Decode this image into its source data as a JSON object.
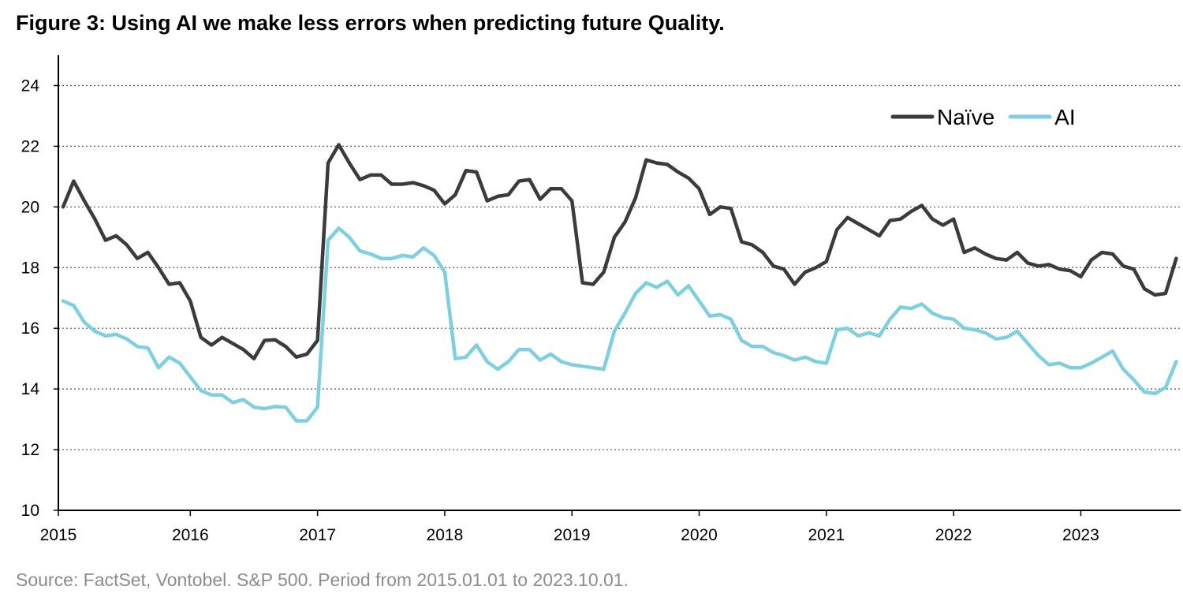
{
  "title": "Figure 3: Using AI we make less errors when predicting future Quality.",
  "source": "Source: FactSet, Vontobel. S&P 500. Period from 2015.01.01 to 2023.10.01.",
  "chart_data": {
    "type": "line",
    "title": "Figure 3: Using AI we make less errors when predicting future Quality.",
    "xlabel": "",
    "ylabel": "",
    "ylim": [
      10,
      25
    ],
    "yticks": [
      10,
      12,
      14,
      16,
      18,
      20,
      22,
      24
    ],
    "xlim": [
      "2015-01",
      "2023-11"
    ],
    "xticks": [
      "2015",
      "2016",
      "2017",
      "2018",
      "2019",
      "2020",
      "2021",
      "2022",
      "2023"
    ],
    "grid": "horizontal dotted",
    "legend_position": "top-right",
    "x_start": "2015-01",
    "x_frequency": "monthly",
    "series": [
      {
        "name": "Naïve",
        "color": "#3b3b3b",
        "values": [
          20.0,
          20.85,
          20.2,
          19.6,
          18.9,
          19.05,
          18.75,
          18.3,
          18.5,
          18.0,
          17.45,
          17.5,
          16.9,
          15.7,
          15.45,
          15.7,
          15.5,
          15.3,
          15.0,
          15.6,
          15.62,
          15.4,
          15.05,
          15.15,
          15.6,
          21.45,
          22.05,
          21.45,
          20.9,
          21.05,
          21.05,
          20.75,
          20.75,
          20.8,
          20.7,
          20.55,
          20.1,
          20.4,
          21.2,
          21.15,
          20.2,
          20.35,
          20.4,
          20.85,
          20.9,
          20.25,
          20.6,
          20.6,
          20.2,
          17.5,
          17.45,
          17.85,
          19.0,
          19.5,
          20.3,
          21.55,
          21.45,
          21.4,
          21.15,
          20.95,
          20.6,
          19.75,
          20.0,
          19.95,
          18.85,
          18.75,
          18.5,
          18.05,
          17.95,
          17.45,
          17.85,
          18.0,
          18.2,
          19.25,
          19.65,
          19.45,
          19.25,
          19.05,
          19.55,
          19.6,
          19.85,
          20.05,
          19.6,
          19.4,
          19.6,
          18.5,
          18.65,
          18.45,
          18.3,
          18.25,
          18.5,
          18.15,
          18.05,
          18.1,
          17.95,
          17.9,
          17.7,
          18.25,
          18.5,
          18.45,
          18.05,
          17.95,
          17.3,
          17.1,
          17.15,
          18.3
        ]
      },
      {
        "name": "AI",
        "color": "#7ecfdf",
        "values": [
          16.9,
          16.75,
          16.2,
          15.9,
          15.75,
          15.8,
          15.65,
          15.4,
          15.35,
          14.7,
          15.05,
          14.85,
          14.4,
          13.95,
          13.8,
          13.8,
          13.55,
          13.65,
          13.4,
          13.35,
          13.42,
          13.4,
          12.95,
          12.95,
          13.4,
          18.9,
          19.3,
          19.0,
          18.55,
          18.45,
          18.3,
          18.3,
          18.4,
          18.35,
          18.65,
          18.4,
          17.85,
          15.0,
          15.05,
          15.45,
          14.9,
          14.65,
          14.9,
          15.3,
          15.3,
          14.95,
          15.15,
          14.9,
          14.8,
          14.75,
          14.7,
          14.65,
          15.9,
          16.5,
          17.15,
          17.5,
          17.35,
          17.55,
          17.1,
          17.4,
          16.9,
          16.4,
          16.45,
          16.3,
          15.6,
          15.4,
          15.4,
          15.2,
          15.1,
          14.95,
          15.05,
          14.9,
          14.85,
          15.95,
          16.0,
          15.75,
          15.85,
          15.75,
          16.3,
          16.7,
          16.65,
          16.8,
          16.5,
          16.35,
          16.3,
          16.0,
          15.95,
          15.85,
          15.65,
          15.7,
          15.9,
          15.5,
          15.1,
          14.8,
          14.85,
          14.7,
          14.7,
          14.85,
          15.05,
          15.25,
          14.65,
          14.3,
          13.9,
          13.85,
          14.05,
          14.9
        ]
      }
    ]
  }
}
